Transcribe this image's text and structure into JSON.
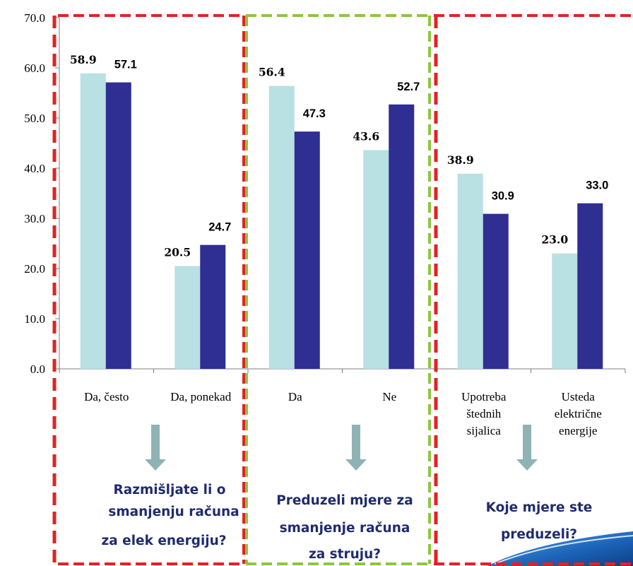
{
  "chart_data": {
    "type": "bar",
    "categories": [
      "Da, često",
      "Da, ponekad",
      "Da",
      "Ne",
      "Upotreba štednih sijalica",
      "Usteda električne energije"
    ],
    "category_lines": [
      [
        "Da, često"
      ],
      [
        "Da, ponekad"
      ],
      [
        "Da"
      ],
      [
        "Ne"
      ],
      [
        "Upotreba",
        "štednih",
        "sijalica"
      ],
      [
        "Usteda",
        "električne",
        "energije"
      ]
    ],
    "series": [
      {
        "values": [
          58.9,
          20.5,
          56.4,
          43.6,
          38.9,
          23.0
        ],
        "labels": [
          "58.9",
          "20.5",
          "56.4",
          "43.6",
          "38.9",
          "23.0"
        ],
        "color": "#b9e0e3"
      },
      {
        "values": [
          57.1,
          24.7,
          47.3,
          52.7,
          30.9,
          33.0
        ],
        "labels": [
          "57.1",
          "24.7",
          "47.3",
          "52.7",
          "30.9",
          "33.0"
        ],
        "color": "#2e2e93"
      }
    ],
    "ylim": [
      0,
      70
    ],
    "yticks": [
      "0.0",
      "10.0",
      "20.0",
      "30.0",
      "40.0",
      "50.0",
      "60.0",
      "70.0"
    ],
    "grid": false,
    "questions": [
      [
        "Razmišljate li o",
        "smanjenju računa",
        "za elek energiju?"
      ],
      [
        "Preduzeli mjere za",
        "smanjenje računa",
        "za struju?"
      ],
      [
        "Koje mjere ste",
        "preduzeli?"
      ]
    ],
    "group_border_colors": [
      "#e32222",
      "#8cc63f",
      "#e32222"
    ],
    "arrow_color": "#8fb3b5"
  }
}
